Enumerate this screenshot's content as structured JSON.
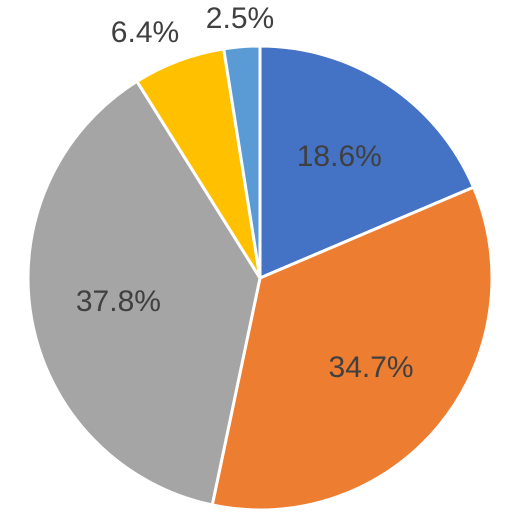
{
  "chart_data": {
    "type": "pie",
    "start_angle_deg": 0,
    "direction": "clockwise",
    "slices": [
      {
        "value": 18.6,
        "label": "18.6%",
        "color": "#4472C4",
        "label_position": "inside"
      },
      {
        "value": 34.7,
        "label": "34.7%",
        "color": "#ED7D31",
        "label_position": "inside"
      },
      {
        "value": 37.8,
        "label": "37.8%",
        "color": "#A5A5A5",
        "label_position": "inside"
      },
      {
        "value": 6.4,
        "label": "6.4%",
        "color": "#FFC000",
        "label_position": "outside"
      },
      {
        "value": 2.5,
        "label": "2.5%",
        "color": "#5B9BD5",
        "label_position": "outside"
      }
    ],
    "label_color": "#404040",
    "legend": "none"
  }
}
